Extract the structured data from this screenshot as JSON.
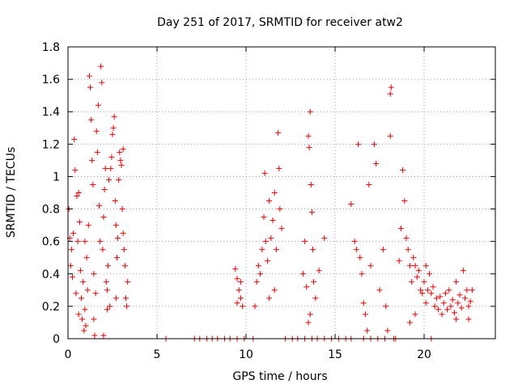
{
  "chart_data": {
    "type": "scatter",
    "title": "Day 251 of 2017, SRMTID for receiver atw2",
    "xlabel": "GPS time / hours",
    "ylabel": "SRMTID / TECUs",
    "xlim": [
      0,
      24
    ],
    "ylim": [
      0,
      1.8
    ],
    "xticks": [
      0,
      5,
      10,
      15,
      20
    ],
    "xtick_labels": [
      "0",
      "5",
      "10",
      "15",
      "20"
    ],
    "yticks": [
      0,
      0.2,
      0.4,
      0.6,
      0.8,
      1.0,
      1.2,
      1.4,
      1.6,
      1.8
    ],
    "ytick_labels": [
      "0",
      "0.2",
      "0.4",
      "0.6",
      "0.8",
      "1",
      "1.2",
      "1.4",
      "1.6",
      "1.8"
    ],
    "grid": true,
    "marker": "+",
    "color": "#e00000",
    "series": [
      {
        "name": "SRMTID",
        "points": [
          [
            0.05,
            0.8
          ],
          [
            0.1,
            0.62
          ],
          [
            0.15,
            0.45
          ],
          [
            0.2,
            0.55
          ],
          [
            0.25,
            0.38
          ],
          [
            0.3,
            0.65
          ],
          [
            0.35,
            1.23
          ],
          [
            0.4,
            1.04
          ],
          [
            0.45,
            0.28
          ],
          [
            0.5,
            0.88
          ],
          [
            0.55,
            0.6
          ],
          [
            0.6,
            0.15
          ],
          [
            0.65,
            0.72
          ],
          [
            0.7,
            0.42
          ],
          [
            0.75,
            0.25
          ],
          [
            0.8,
            0.12
          ],
          [
            0.85,
            0.35
          ],
          [
            0.9,
            0.05
          ],
          [
            0.95,
            0.18
          ],
          [
            1.0,
            0.08
          ],
          [
            1.05,
            0.5
          ],
          [
            1.1,
            0.3
          ],
          [
            1.15,
            0.7
          ],
          [
            1.2,
            1.62
          ],
          [
            1.25,
            1.55
          ],
          [
            1.3,
            1.35
          ],
          [
            1.35,
            1.1
          ],
          [
            1.4,
            0.95
          ],
          [
            1.45,
            0.4
          ],
          [
            1.5,
            0.02
          ],
          [
            1.55,
            0.28
          ],
          [
            1.6,
            1.28
          ],
          [
            1.65,
            1.15
          ],
          [
            1.7,
            1.44
          ],
          [
            1.75,
            0.82
          ],
          [
            1.8,
            0.6
          ],
          [
            1.85,
            1.68
          ],
          [
            1.9,
            1.58
          ],
          [
            1.95,
            0.55
          ],
          [
            2.0,
            0.75
          ],
          [
            2.05,
            0.92
          ],
          [
            2.1,
            1.05
          ],
          [
            2.15,
            0.35
          ],
          [
            2.2,
            0.18
          ],
          [
            2.25,
            0.45
          ],
          [
            2.3,
            0.98
          ],
          [
            2.35,
            0.2
          ],
          [
            2.4,
            1.05
          ],
          [
            2.45,
            1.12
          ],
          [
            2.5,
            1.26
          ],
          [
            2.55,
            1.3
          ],
          [
            2.6,
            1.37
          ],
          [
            2.65,
            0.85
          ],
          [
            2.7,
            0.7
          ],
          [
            2.75,
            0.5
          ],
          [
            2.8,
            0.62
          ],
          [
            2.85,
            0.98
          ],
          [
            2.9,
            1.15
          ],
          [
            2.95,
            1.1
          ],
          [
            3.0,
            1.07
          ],
          [
            3.05,
            0.8
          ],
          [
            3.1,
            0.65
          ],
          [
            3.15,
            0.55
          ],
          [
            3.2,
            0.45
          ],
          [
            3.25,
            0.25
          ],
          [
            3.3,
            0.2
          ],
          [
            3.35,
            0.35
          ],
          [
            3.1,
            1.17
          ],
          [
            2.7,
            0.25
          ],
          [
            2.2,
            0.3
          ],
          [
            1.45,
            0.12
          ],
          [
            0.6,
            0.9
          ],
          [
            0.95,
            0.6
          ],
          [
            2.0,
            0.02
          ],
          [
            5.5,
            0.0
          ],
          [
            7.1,
            0.0
          ],
          [
            7.4,
            0.0
          ],
          [
            7.8,
            0.0
          ],
          [
            8.1,
            0.0
          ],
          [
            8.4,
            0.0
          ],
          [
            8.8,
            0.0
          ],
          [
            9.1,
            0.0
          ],
          [
            9.5,
            0.0
          ],
          [
            9.9,
            0.0
          ],
          [
            10.4,
            0.0
          ],
          [
            12.2,
            0.0
          ],
          [
            12.6,
            0.0
          ],
          [
            12.9,
            0.0
          ],
          [
            13.3,
            0.0
          ],
          [
            13.7,
            0.0
          ],
          [
            14.0,
            0.0
          ],
          [
            14.4,
            0.0
          ],
          [
            14.8,
            0.0
          ],
          [
            15.2,
            0.0
          ],
          [
            15.6,
            0.0
          ],
          [
            15.9,
            0.0
          ],
          [
            16.6,
            0.0
          ],
          [
            17.0,
            0.0
          ],
          [
            17.4,
            0.0
          ],
          [
            17.8,
            0.0
          ],
          [
            18.4,
            0.0
          ],
          [
            20.4,
            0.0
          ],
          [
            9.4,
            0.43
          ],
          [
            9.5,
            0.37
          ],
          [
            9.6,
            0.3
          ],
          [
            9.7,
            0.25
          ],
          [
            9.8,
            0.2
          ],
          [
            9.5,
            0.22
          ],
          [
            9.7,
            0.35
          ],
          [
            10.5,
            0.2
          ],
          [
            10.6,
            0.35
          ],
          [
            10.7,
            0.45
          ],
          [
            10.8,
            0.4
          ],
          [
            10.9,
            0.55
          ],
          [
            11.0,
            0.75
          ],
          [
            11.05,
            1.02
          ],
          [
            11.1,
            0.6
          ],
          [
            11.2,
            0.48
          ],
          [
            11.3,
            0.85
          ],
          [
            11.4,
            0.62
          ],
          [
            11.5,
            0.73
          ],
          [
            11.6,
            0.9
          ],
          [
            11.7,
            0.55
          ],
          [
            11.8,
            1.27
          ],
          [
            11.85,
            1.05
          ],
          [
            11.9,
            0.8
          ],
          [
            12.0,
            0.68
          ],
          [
            11.3,
            0.25
          ],
          [
            11.6,
            0.3
          ],
          [
            13.2,
            0.4
          ],
          [
            13.3,
            0.6
          ],
          [
            13.4,
            0.32
          ],
          [
            13.5,
            1.25
          ],
          [
            13.55,
            1.18
          ],
          [
            13.6,
            1.4
          ],
          [
            13.65,
            0.95
          ],
          [
            13.7,
            0.78
          ],
          [
            13.75,
            0.55
          ],
          [
            13.8,
            0.35
          ],
          [
            13.9,
            0.25
          ],
          [
            13.6,
            0.15
          ],
          [
            14.1,
            0.42
          ],
          [
            14.4,
            0.62
          ],
          [
            13.5,
            0.1
          ],
          [
            15.9,
            0.83
          ],
          [
            16.1,
            0.6
          ],
          [
            16.2,
            0.55
          ],
          [
            16.3,
            1.2
          ],
          [
            16.4,
            0.5
          ],
          [
            16.5,
            0.4
          ],
          [
            16.6,
            0.22
          ],
          [
            16.7,
            0.15
          ],
          [
            16.8,
            0.05
          ],
          [
            16.9,
            0.95
          ],
          [
            17.0,
            0.45
          ],
          [
            17.2,
            1.2
          ],
          [
            17.3,
            1.08
          ],
          [
            17.5,
            0.3
          ],
          [
            17.7,
            0.55
          ],
          [
            17.85,
            0.2
          ],
          [
            17.95,
            0.05
          ],
          [
            18.1,
            1.25
          ],
          [
            18.1,
            1.51
          ],
          [
            18.15,
            1.55
          ],
          [
            18.3,
            0.0
          ],
          [
            18.6,
            0.48
          ],
          [
            18.7,
            0.68
          ],
          [
            18.8,
            1.04
          ],
          [
            18.9,
            0.85
          ],
          [
            19.0,
            0.62
          ],
          [
            19.1,
            0.55
          ],
          [
            19.2,
            0.45
          ],
          [
            19.3,
            0.35
          ],
          [
            19.4,
            0.5
          ],
          [
            19.5,
            0.45
          ],
          [
            19.6,
            0.38
          ],
          [
            19.7,
            0.42
          ],
          [
            19.8,
            0.3
          ],
          [
            19.9,
            0.28
          ],
          [
            20.0,
            0.35
          ],
          [
            20.1,
            0.22
          ],
          [
            20.2,
            0.3
          ],
          [
            20.3,
            0.4
          ],
          [
            20.4,
            0.28
          ],
          [
            20.5,
            0.32
          ],
          [
            20.6,
            0.2
          ],
          [
            20.7,
            0.25
          ],
          [
            20.8,
            0.18
          ],
          [
            20.9,
            0.26
          ],
          [
            21.0,
            0.15
          ],
          [
            21.1,
            0.22
          ],
          [
            21.2,
            0.28
          ],
          [
            21.3,
            0.18
          ],
          [
            21.4,
            0.3
          ],
          [
            21.5,
            0.2
          ],
          [
            21.6,
            0.24
          ],
          [
            21.7,
            0.16
          ],
          [
            21.8,
            0.35
          ],
          [
            21.9,
            0.22
          ],
          [
            22.0,
            0.27
          ],
          [
            22.1,
            0.19
          ],
          [
            22.2,
            0.42
          ],
          [
            22.3,
            0.25
          ],
          [
            22.4,
            0.3
          ],
          [
            22.5,
            0.2
          ],
          [
            22.6,
            0.23
          ],
          [
            22.7,
            0.3
          ],
          [
            19.2,
            0.1
          ],
          [
            19.5,
            0.15
          ],
          [
            20.1,
            0.45
          ],
          [
            21.8,
            0.12
          ],
          [
            22.5,
            0.12
          ]
        ]
      }
    ]
  }
}
